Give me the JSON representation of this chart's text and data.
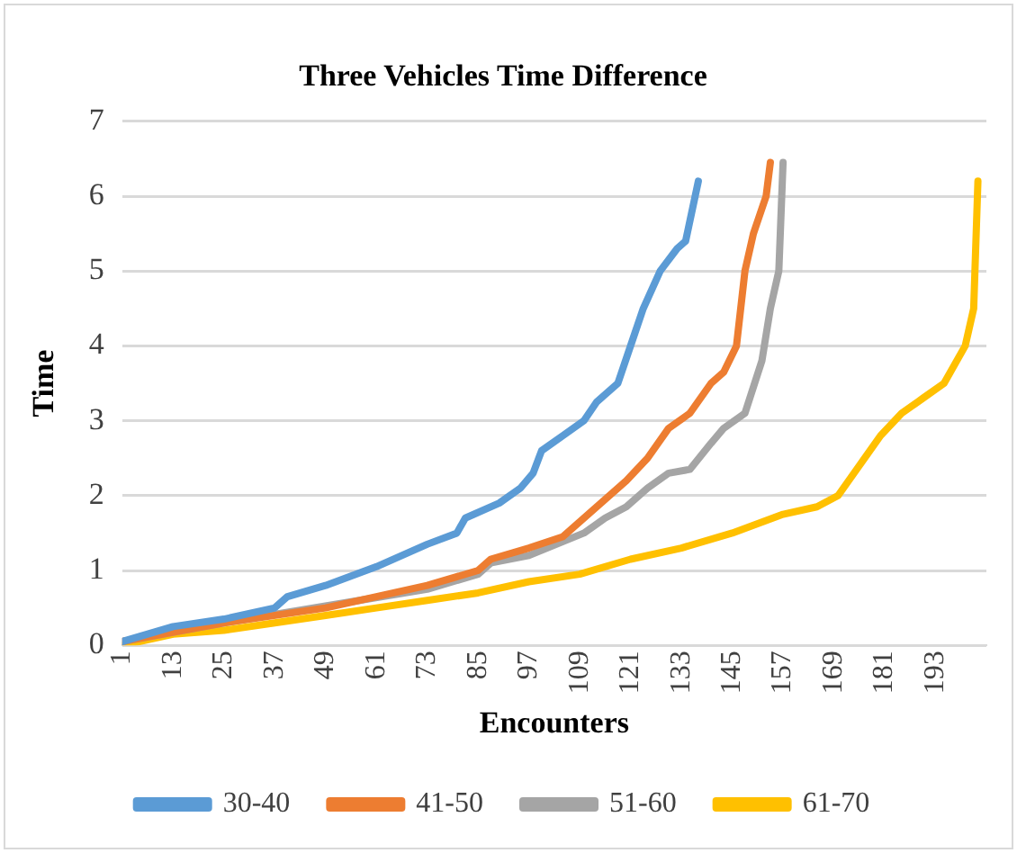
{
  "chart_data": {
    "type": "line",
    "title": "Three Vehicles Time Difference",
    "xlabel": "Encounters",
    "ylabel": "Time",
    "xlim": [
      1,
      205
    ],
    "xticks": [
      1,
      13,
      25,
      37,
      49,
      61,
      73,
      85,
      97,
      109,
      121,
      133,
      145,
      157,
      169,
      181,
      193
    ],
    "ylim": [
      0,
      7
    ],
    "yticks": [
      0,
      1,
      2,
      3,
      4,
      5,
      6,
      7
    ],
    "grid": "y",
    "legend": "bottom",
    "marker": "none",
    "line_style": "solid",
    "series": [
      {
        "name": "30-40",
        "color": "#5b9bd5",
        "x": [
          1,
          13,
          25,
          37,
          40,
          49,
          61,
          73,
          80,
          82,
          90,
          95,
          98,
          100,
          105,
          110,
          113,
          118,
          121,
          124,
          128,
          132,
          134,
          137
        ],
        "values": [
          0.05,
          0.25,
          0.35,
          0.5,
          0.65,
          0.8,
          1.05,
          1.35,
          1.5,
          1.7,
          1.9,
          2.1,
          2.3,
          2.6,
          2.8,
          3.0,
          3.25,
          3.5,
          4.0,
          4.5,
          5.0,
          5.3,
          5.4,
          6.2
        ]
      },
      {
        "name": "41-50",
        "color": "#ed7d31",
        "x": [
          1,
          25,
          49,
          73,
          85,
          88,
          97,
          105,
          110,
          115,
          120,
          125,
          130,
          135,
          140,
          143,
          146,
          148,
          150,
          153,
          154
        ],
        "values": [
          0.05,
          0.3,
          0.5,
          0.8,
          1.0,
          1.15,
          1.3,
          1.45,
          1.7,
          1.95,
          2.2,
          2.5,
          2.9,
          3.1,
          3.5,
          3.65,
          4.0,
          5.0,
          5.5,
          6.0,
          6.45
        ]
      },
      {
        "name": "51-60",
        "color": "#a5a5a5",
        "x": [
          1,
          25,
          73,
          85,
          88,
          97,
          110,
          115,
          120,
          125,
          130,
          135,
          140,
          143,
          148,
          152,
          154,
          156,
          157
        ],
        "values": [
          0.05,
          0.3,
          0.75,
          0.95,
          1.1,
          1.2,
          1.5,
          1.7,
          1.85,
          2.1,
          2.3,
          2.35,
          2.7,
          2.9,
          3.1,
          3.8,
          4.5,
          5.0,
          6.45
        ]
      },
      {
        "name": "61-70",
        "color": "#ffc000",
        "x": [
          1,
          13,
          25,
          37,
          49,
          61,
          73,
          85,
          97,
          109,
          121,
          133,
          145,
          157,
          165,
          170,
          175,
          180,
          185,
          190,
          195,
          200,
          202,
          203
        ],
        "values": [
          0.0,
          0.15,
          0.2,
          0.3,
          0.4,
          0.5,
          0.6,
          0.7,
          0.85,
          0.95,
          1.15,
          1.3,
          1.5,
          1.75,
          1.85,
          2.0,
          2.4,
          2.8,
          3.1,
          3.3,
          3.5,
          4.0,
          4.5,
          6.2
        ]
      }
    ]
  }
}
